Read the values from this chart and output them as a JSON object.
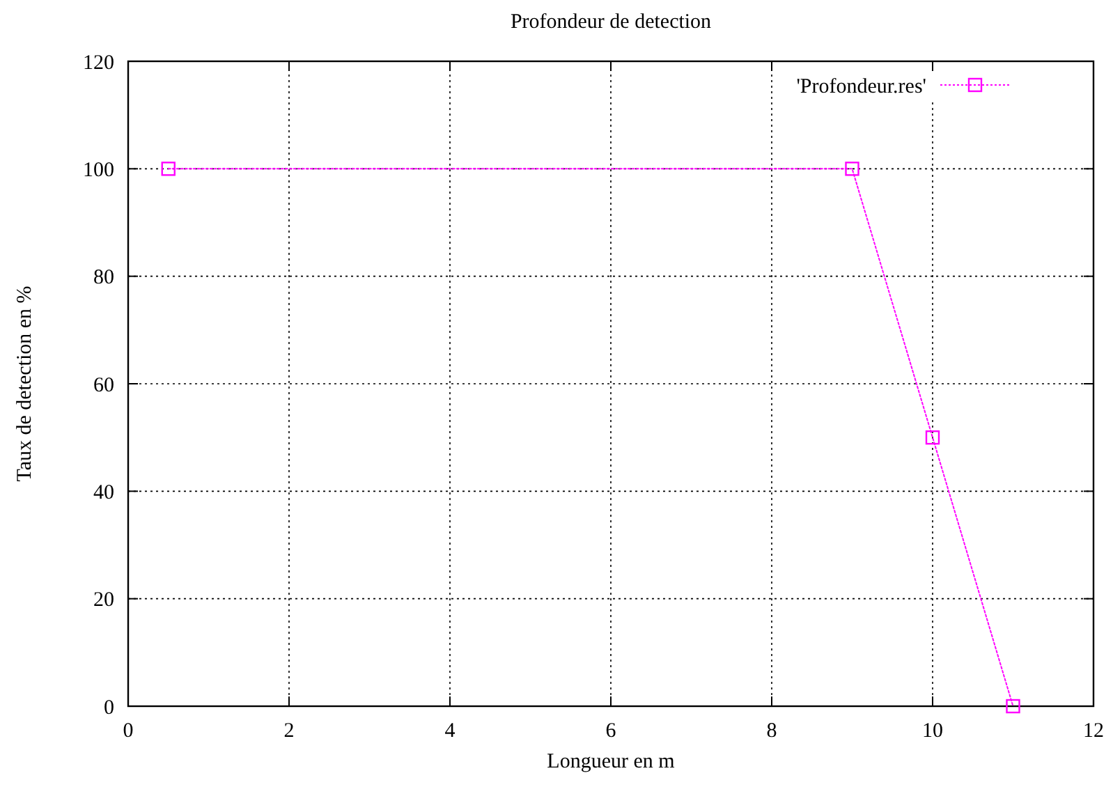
{
  "chart_data": {
    "type": "line",
    "title": "Profondeur de detection",
    "xlabel": "Longueur en m",
    "ylabel": "Taux de detection en %",
    "x": [
      0.5,
      9,
      10,
      11
    ],
    "series": [
      {
        "name": "'Profondeur.res'",
        "color": "#ff00ff",
        "values": [
          100,
          100,
          50,
          0
        ]
      }
    ],
    "xlim": [
      0,
      12
    ],
    "xticks": [
      0,
      2,
      4,
      6,
      8,
      10,
      12
    ],
    "ylim": [
      0,
      120
    ],
    "yticks": [
      0,
      20,
      40,
      60,
      80,
      100,
      120
    ],
    "grid": true,
    "legend": "top right",
    "marker": "square",
    "line_style": "dotted"
  }
}
